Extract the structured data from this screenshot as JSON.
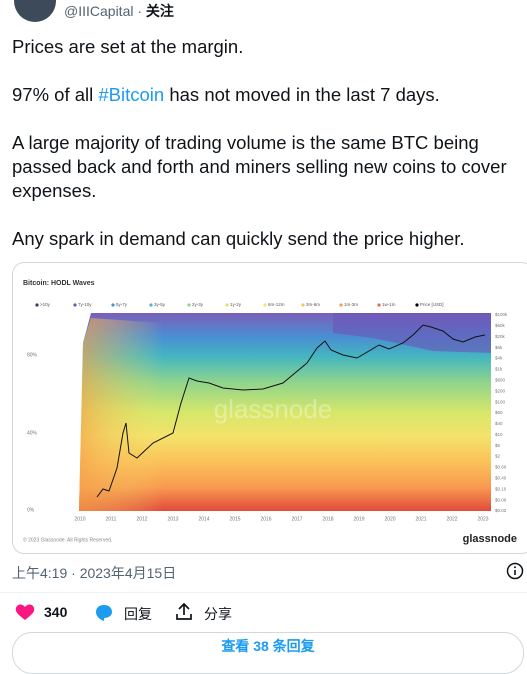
{
  "author": {
    "handle": "@IIICapital",
    "separator": " · ",
    "follow": "关注"
  },
  "tweet": {
    "paragraphs": [
      {
        "parts": [
          "Prices are set at the margin."
        ]
      },
      {
        "parts": [
          "97% of all ",
          "#Bitcoin",
          " has not moved in the last 7 days."
        ]
      },
      {
        "parts": [
          "A large majority of trading volume is the same BTC being passed back and forth and miners selling new coins to cover expenses."
        ]
      },
      {
        "parts": [
          "Any spark in demand can quickly send the price higher."
        ]
      }
    ]
  },
  "media": {
    "title": "Bitcoin: HODL Waves",
    "legend": [
      {
        "label": ">10y",
        "color": "#4b2f7f"
      },
      {
        "label": "7y-10y",
        "color": "#6a55b8"
      },
      {
        "label": "5y-7y",
        "color": "#4a8fd2"
      },
      {
        "label": "3y-5y",
        "color": "#44b6c0"
      },
      {
        "label": "2y-3y",
        "color": "#8fd48d"
      },
      {
        "label": "1y-2y",
        "color": "#d5e76a"
      },
      {
        "label": "6m-12m",
        "color": "#f3e36b"
      },
      {
        "label": "3m-6m",
        "color": "#fbc25a"
      },
      {
        "label": "1m-3m",
        "color": "#f89a50"
      },
      {
        "label": "1w-1m",
        "color": "#ee6a45"
      },
      {
        "label": "Price [USD]",
        "color": "#000000"
      }
    ],
    "left_axis": [
      "80%",
      "40%",
      "0%"
    ],
    "right_axis": [
      "$100k",
      "$60k",
      "$20k",
      "$6k",
      "$4k",
      "$1k",
      "$600",
      "$200",
      "$100",
      "$60",
      "$40",
      "$10",
      "$6",
      "$2",
      "$0.60",
      "$0.40",
      "$0.10",
      "$0.06",
      "$0.02"
    ],
    "x_axis": [
      "2010",
      "2011",
      "2012",
      "2013",
      "2014",
      "2015",
      "2016",
      "2017",
      "2018",
      "2019",
      "2020",
      "2021",
      "2022",
      "2023"
    ],
    "watermark": "glassnode",
    "copyright": "© 2023 Glassnode. All Rights Reserved.",
    "brand": "glassnode"
  },
  "meta": {
    "time": "上午4:19 · 2023年4月15日"
  },
  "actions": {
    "likes": "340",
    "reply": "回复",
    "share": "分享"
  },
  "footer": {
    "more_replies": "查看 38 条回复"
  }
}
